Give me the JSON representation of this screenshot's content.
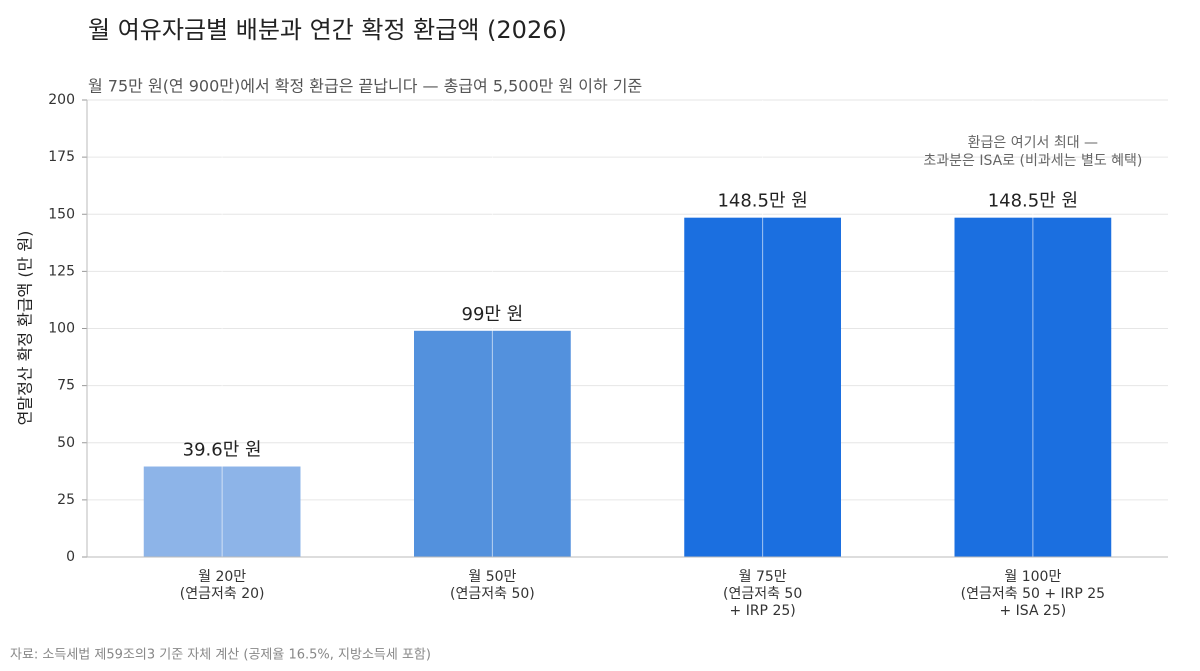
{
  "chart_data": {
    "type": "bar",
    "title": "월 여유자금별 배분과 연간 확정 환급액 (2026)",
    "subtitle": "월 75만 원(연 900만)에서 확정 환급은 끝납니다 — 총급여 5,500만 원 이하 기준",
    "y_label": "연말정산 확정 환급액 (만 원)",
    "categories": [
      [
        "월 20만",
        "(연금저축 20)"
      ],
      [
        "월 50만",
        "(연금저축 50)"
      ],
      [
        "월 75만",
        "(연금저축 50",
        "+ IRP 25)"
      ],
      [
        "월 100만",
        "(연금저축 50 + IRP 25",
        "+ ISA 25)"
      ]
    ],
    "values": [
      39.6,
      99,
      148.5,
      148.5
    ],
    "value_labels": [
      "39.6만 원",
      "99만 원",
      "148.5만 원",
      "148.5만 원"
    ],
    "colors": [
      "#8db4e8",
      "#5391dd",
      "#1b6fe0",
      "#1b6fe0"
    ],
    "ylim": [
      0,
      200
    ],
    "yticks": [
      0,
      25,
      50,
      75,
      100,
      125,
      150,
      175,
      200
    ],
    "grid": true,
    "annotation": [
      "환급은 여기서 최대 —",
      "초과분은 ISA로 (비과세는 별도 혜택)"
    ],
    "source": "자료: 소득세법 제59조의3 기준 자체 계산 (공제율 16.5%, 지방소득세 포함)"
  }
}
